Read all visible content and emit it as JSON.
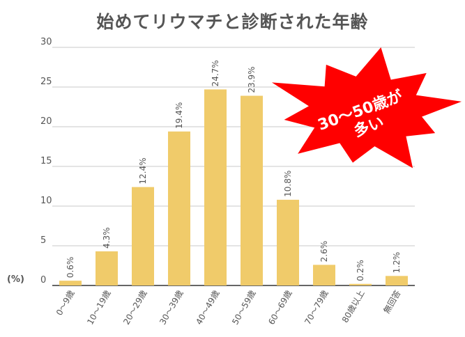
{
  "chart_data": {
    "type": "bar",
    "title": "始めてリウマチと診断された年齢",
    "ylabel": "(%)",
    "xlabel": "",
    "ylim": [
      0,
      30
    ],
    "yticks": [
      0,
      5,
      10,
      15,
      20,
      25,
      30
    ],
    "grid": true,
    "categories": [
      "0〜9歳",
      "10〜19歳",
      "20〜29歳",
      "30〜39歳",
      "40〜49歳",
      "50〜59歳",
      "60〜69歳",
      "70〜79歳",
      "80歳以上",
      "無回答"
    ],
    "values": [
      0.6,
      4.3,
      12.4,
      19.4,
      24.7,
      23.9,
      10.8,
      2.6,
      0.2,
      1.2
    ],
    "data_labels": [
      "0.6%",
      "4.3%",
      "12.4%",
      "19.4%",
      "24.7%",
      "23.9%",
      "10.8%",
      "2.6%",
      "0.2%",
      "1.2%"
    ],
    "bar_color": "#f0cb6a",
    "annotation": {
      "lines": [
        "30〜50歳が",
        "多い"
      ],
      "fill": "#ff0000",
      "text_color": "#ffffff"
    }
  }
}
